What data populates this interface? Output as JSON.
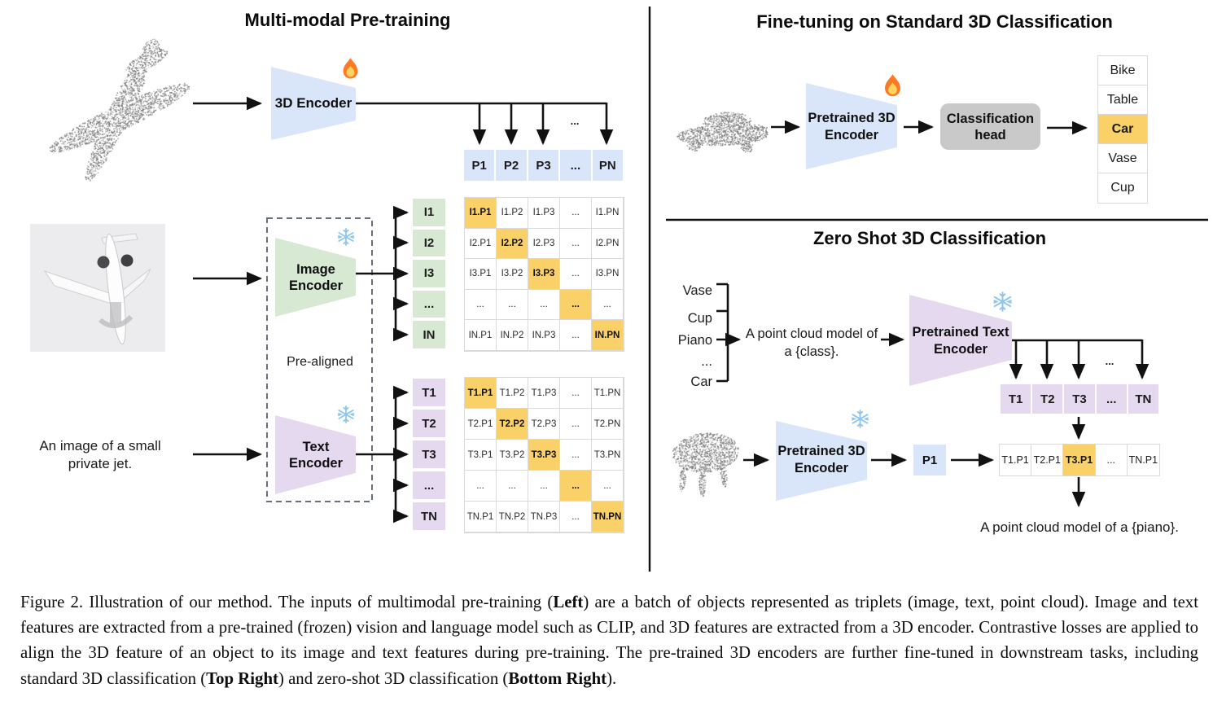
{
  "colors": {
    "blue": "#d9e5f8",
    "green": "#d7e8d3",
    "purple": "#e4d9ee",
    "orange": "#fad169",
    "gray": "#c9c9c9",
    "line": "#111111"
  },
  "figure": {
    "left": {
      "title": "Multi-modal Pre-training",
      "encoder3d_label": "3D Encoder",
      "image_encoder_label": "Image Encoder",
      "text_encoder_label": "Text Encoder",
      "pre_aligned": "Pre-aligned",
      "jet_caption": "An image of a small private jet.",
      "dots": "...",
      "p_row": [
        "P1",
        "P2",
        "P3",
        "...",
        "PN"
      ],
      "image_rows": [
        "I1",
        "I2",
        "I3",
        "...",
        "IN"
      ],
      "text_rows": [
        "T1",
        "T2",
        "T3",
        "...",
        "TN"
      ],
      "image_matrix": [
        [
          "I1.P1",
          "I1.P2",
          "I1.P3",
          "...",
          "I1.PN"
        ],
        [
          "I2.P1",
          "I2.P2",
          "I2.P3",
          "...",
          "I2.PN"
        ],
        [
          "I3.P1",
          "I3.P2",
          "I3.P3",
          "...",
          "I3.PN"
        ],
        [
          "...",
          "...",
          "...",
          "...",
          "..."
        ],
        [
          "IN.P1",
          "IN.P2",
          "IN.P3",
          "...",
          "IN.PN"
        ]
      ],
      "text_matrix": [
        [
          "T1.P1",
          "T1.P2",
          "T1.P3",
          "...",
          "T1.PN"
        ],
        [
          "T2.P1",
          "T2.P2",
          "T2.P3",
          "...",
          "T2.PN"
        ],
        [
          "T3.P1",
          "T3.P2",
          "T3.P3",
          "...",
          "T3.PN"
        ],
        [
          "...",
          "...",
          "...",
          "...",
          "..."
        ],
        [
          "TN.P1",
          "TN.P2",
          "TN.P3",
          "...",
          "TN.PN"
        ]
      ]
    },
    "top_right": {
      "title": "Fine-tuning on Standard 3D Classification",
      "encoder_label": "Pretrained 3D Encoder",
      "head_label": "Classification head",
      "classes": [
        "Bike",
        "Table",
        "Car",
        "Vase",
        "Cup"
      ],
      "highlight_index": 2
    },
    "bottom_right": {
      "title": "Zero Shot 3D Classification",
      "classes": [
        "Vase",
        "Cup",
        "Piano",
        "...",
        "Car"
      ],
      "prompt": "A point cloud model of a {class}.",
      "text_encoder_label": "Pretrained Text Encoder",
      "encoder_label": "Pretrained 3D Encoder",
      "p_cell": "P1",
      "dots": "...",
      "t_row": [
        "T1",
        "T2",
        "T3",
        "...",
        "TN"
      ],
      "sim_row": [
        "T1.P1",
        "T2.P1",
        "T3.P1",
        "...",
        "TN.P1"
      ],
      "sim_highlight_index": 2,
      "result": "A point cloud model of a {piano}."
    },
    "caption_segments": [
      {
        "t": "Figure 2. Illustration of our method. The inputs of multimodal pre-training ("
      },
      {
        "t": "Left",
        "b": true
      },
      {
        "t": ") are a batch of objects represented as triplets (image, text, point cloud). Image and text features are extracted from a pre-trained (frozen) vision and language model such as CLIP, and 3D features are extracted from a 3D encoder. Contrastive losses are applied to align the 3D feature of an object to its image and text features during pre-training. The pre-trained 3D encoders are further fine-tuned in downstream tasks, including standard 3D classification ("
      },
      {
        "t": "Top Right",
        "b": true
      },
      {
        "t": ") and zero-shot 3D classification ("
      },
      {
        "t": "Bottom Right",
        "b": true
      },
      {
        "t": ")."
      }
    ]
  }
}
